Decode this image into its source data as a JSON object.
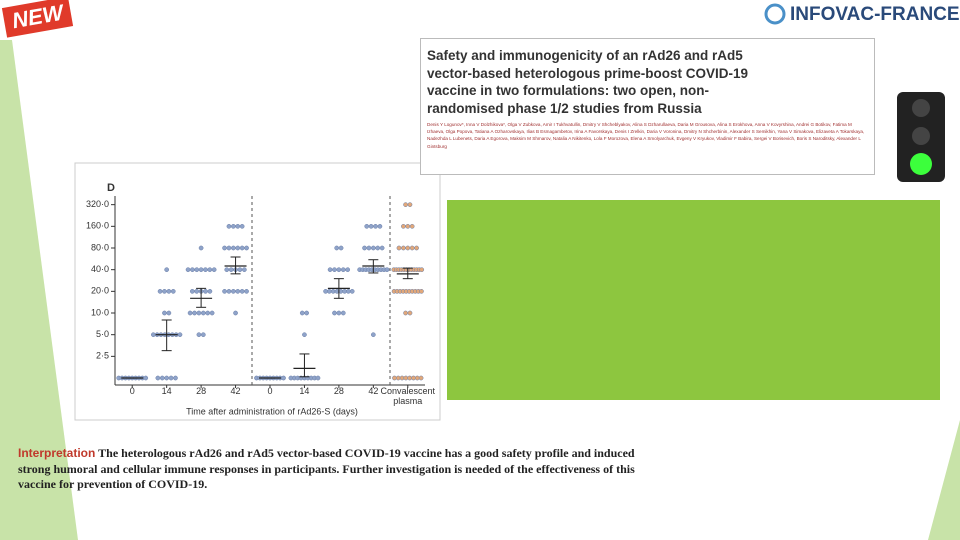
{
  "badge": "NEW",
  "brand": "INFOVAC-FRANCE",
  "paper": {
    "title": "Safety and immunogenicity of an rAd26 and rAd5 vector-based heterologous prime-boost COVID-19 vaccine in two formulations: two open, non-randomised phase 1/2 studies from Russia",
    "authors": "Denis Y Logunov*, Inna V Dolzhikova*, Olga V Zubkova, Amir I Tukhvatullin, Dmitry V Shcheblyakov, Alina S Dzharullaeva, Daria M Grousova, Alina S Erokhova, Anna V Kovyrshina, Andrei G Botikov, Fatima M Izhaeva, Olga Popova, Tatiana A Ozharovskaya, Ilias B Esmagambetov, Irina A Favorskaya, Denis I Zrelkin, Daria V Voronina, Dmitry N Shcherbinin, Alexander S Semikhin, Yana V Simakova, Elizaveta A Tokarskaya, Nadezhda L Lubenets, Daria A Egorova, Maksim M Shmarov, Natalia A Nikitenko, Lola F Morozova, Elena A Smolyarchuk, Evgeny V Kryukov, Vladimir F Babira, Sergei V Borisevich, Boris S Naroditsky, Alexander L Gintsburg"
  },
  "chart_data": {
    "type": "dot",
    "panel": "D",
    "x_label": "Time after administration of rAd26-S (days)",
    "log_y": true,
    "ylim": [
      1,
      450
    ],
    "yticks": [
      {
        "value": 2.5,
        "label": "2·5"
      },
      {
        "value": 5,
        "label": "5·0"
      },
      {
        "value": 10,
        "label": "10·0"
      },
      {
        "value": 20,
        "label": "20·0"
      },
      {
        "value": 40,
        "label": "40·0"
      },
      {
        "value": 80,
        "label": "80·0"
      },
      {
        "value": 160,
        "label": "160·0"
      },
      {
        "value": 320,
        "label": "320·0"
      }
    ],
    "groups": [
      {
        "label": "0",
        "color": "#8fa3c9",
        "mean": 1.25,
        "ci": [
          1.25,
          1.25
        ],
        "values": [
          1.25,
          1.25,
          1.25,
          1.25,
          1.25,
          1.25,
          1.25,
          1.25,
          1.25
        ]
      },
      {
        "label": "14",
        "color": "#8fa3c9",
        "mean": 5,
        "ci": [
          3,
          8
        ],
        "values": [
          40,
          20,
          20,
          20,
          20,
          10,
          10,
          5,
          5,
          5,
          5,
          5,
          5,
          5,
          5,
          1.25,
          1.25,
          1.25,
          1.25,
          1.25
        ]
      },
      {
        "label": "28",
        "color": "#8fa3c9",
        "mean": 16,
        "ci": [
          12,
          22
        ],
        "values": [
          80,
          40,
          40,
          40,
          40,
          40,
          40,
          40,
          20,
          20,
          20,
          20,
          20,
          10,
          10,
          10,
          10,
          10,
          10,
          5,
          5
        ]
      },
      {
        "label": "42",
        "color": "#8fa3c9",
        "mean": 45,
        "ci": [
          35,
          60
        ],
        "values": [
          160,
          160,
          160,
          160,
          80,
          80,
          80,
          80,
          80,
          80,
          40,
          40,
          40,
          40,
          40,
          20,
          20,
          20,
          20,
          20,
          20,
          10
        ]
      },
      {
        "label": "0",
        "color": "#8fa3c9",
        "mean": 1.25,
        "ci": [
          1.25,
          1.25
        ],
        "values": [
          1.25,
          1.25,
          1.25,
          1.25,
          1.25,
          1.25,
          1.25,
          1.25,
          1.25
        ]
      },
      {
        "label": "14",
        "color": "#8fa3c9",
        "mean": 1.7,
        "ci": [
          1.3,
          2.7
        ],
        "values": [
          10,
          10,
          5,
          1.25,
          1.25,
          1.25,
          1.25,
          1.25,
          1.25,
          1.25,
          1.25,
          1.25
        ]
      },
      {
        "label": "28",
        "color": "#8fa3c9",
        "mean": 22,
        "ci": [
          16,
          30
        ],
        "values": [
          80,
          80,
          40,
          40,
          40,
          40,
          40,
          20,
          20,
          20,
          20,
          20,
          20,
          20,
          20,
          10,
          10,
          10
        ]
      },
      {
        "label": "42",
        "color": "#8fa3c9",
        "mean": 45,
        "ci": [
          36,
          55
        ],
        "values": [
          160,
          160,
          160,
          160,
          80,
          80,
          80,
          80,
          80,
          40,
          40,
          40,
          40,
          40,
          40,
          40,
          40,
          40,
          40,
          5
        ]
      },
      {
        "label": "Convalescent plasma",
        "color": "#e2a87a",
        "mean": 35,
        "ci": [
          30,
          42
        ],
        "values": [
          320,
          320,
          160,
          160,
          160,
          80,
          80,
          80,
          80,
          80,
          40,
          40,
          40,
          40,
          40,
          40,
          40,
          40,
          40,
          40,
          40,
          40,
          20,
          20,
          20,
          20,
          20,
          20,
          20,
          20,
          20,
          20,
          10,
          10,
          1.25,
          1.25,
          1.25,
          1.25,
          1.25,
          1.25,
          1.25,
          1.25
        ]
      }
    ]
  },
  "interpretation": {
    "label": "Interpretation",
    "text": "The heterologous rAd26 and rAd5 vector-based COVID-19 vaccine has a good safety profile and induced strong humoral and cellular immune responses in participants. Further investigation is needed of the effectiveness of this vaccine for prevention of COVID-19."
  }
}
